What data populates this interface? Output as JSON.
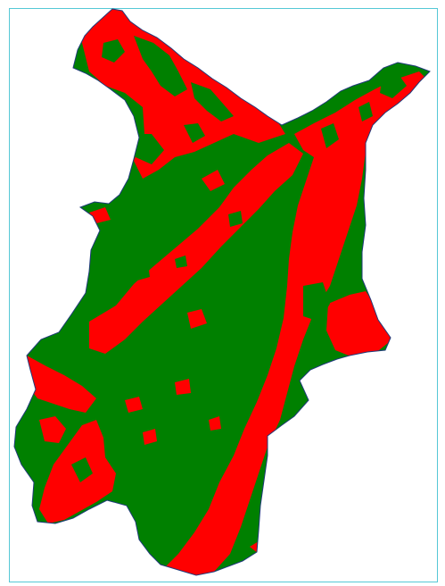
{
  "map": {
    "classes": [
      {
        "id": "class-red",
        "color": "#ff0000"
      },
      {
        "id": "class-green",
        "color": "#008000"
      }
    ],
    "frame_color": "#55c8d6",
    "background": "#ffffff",
    "outline_color": "#1f3a7a"
  }
}
